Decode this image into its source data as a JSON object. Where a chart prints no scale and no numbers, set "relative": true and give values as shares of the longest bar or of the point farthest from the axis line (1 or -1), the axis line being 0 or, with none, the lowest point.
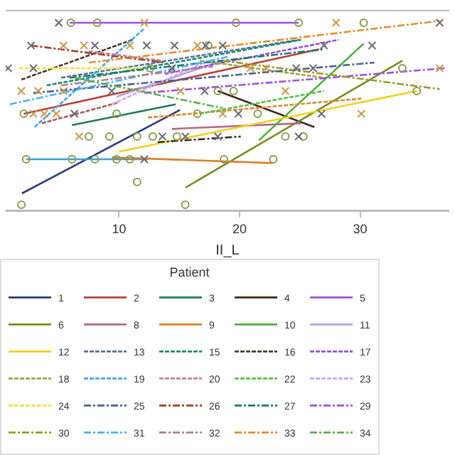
{
  "chart_data": {
    "type": "line",
    "xlabel": "II_L",
    "legend_title": "Patient",
    "relative": true,
    "xlim": [
      0.6,
      37.4
    ],
    "xticks": [
      10,
      20,
      30
    ],
    "grid": false,
    "legend": "bottom",
    "tick_labels": "x",
    "series": [
      {
        "name": "1",
        "color": "#2b3b7a",
        "line_style": "solid",
        "x": [
          1.95,
          15.06
        ],
        "values": [
          0.09,
          0.53
        ]
      },
      {
        "name": "2",
        "color": "#b5443a",
        "line_style": "solid",
        "x": [
          2.1,
          26.6
        ],
        "values": [
          0.51,
          0.85
        ]
      },
      {
        "name": "3",
        "color": "#1f7a5c",
        "line_style": "solid",
        "x": [
          6.1,
          14.7
        ],
        "values": [
          0.45,
          0.56
        ]
      },
      {
        "name": "4",
        "color": "#3d2a1a",
        "line_style": "solid",
        "x": [
          18.2,
          26.2
        ],
        "values": [
          0.63,
          0.44
        ]
      },
      {
        "name": "5",
        "color": "#a050d8",
        "line_style": "solid",
        "x": [
          5.9,
          24.9
        ],
        "values": [
          0.99,
          0.99
        ]
      },
      {
        "name": "6",
        "color": "#7a8a20",
        "line_style": "solid",
        "x": [
          15.5,
          33.5
        ],
        "values": [
          0.12,
          0.79
        ]
      },
      {
        "color": "#3a9ee0",
        "line_style": "solid",
        "x": [
          2.3,
          12.4
        ],
        "values": [
          0.27,
          0.27
        ]
      },
      {
        "name": "8",
        "color": "#b06a8a",
        "line_style": "solid",
        "x": [
          14.4,
          25.1
        ],
        "values": [
          0.43,
          0.46
        ]
      },
      {
        "name": "9",
        "color": "#d9822b",
        "line_style": "solid",
        "x": [
          9.4,
          22.7
        ],
        "values": [
          0.28,
          0.25
        ]
      },
      {
        "name": "10",
        "color": "#4caf3a",
        "line_style": "solid",
        "x": [
          21.6,
          30.3
        ],
        "values": [
          0.37,
          0.88
        ]
      },
      {
        "name": "11",
        "color": "#b8a0e0",
        "line_style": "solid",
        "x": [
          9.8,
          18.6
        ],
        "values": [
          0.6,
          0.79
        ]
      },
      {
        "name": "12",
        "color": "#f0d020",
        "line_style": "solid",
        "x": [
          10.0,
          34.7
        ],
        "values": [
          0.31,
          0.63
        ]
      },
      {
        "name": "13",
        "color": "#5a6f9a",
        "line_style": "dashed",
        "x": [
          5.2,
          24.9
        ],
        "values": [
          0.7,
          0.9
        ]
      },
      {
        "color": "#a85a5a",
        "line_style": "dashed",
        "x": [
          3.6,
          10.0
        ],
        "values": [
          0.46,
          0.57
        ]
      },
      {
        "name": "15",
        "color": "#1f8a70",
        "line_style": "dashed",
        "x": [
          4.0,
          25.1
        ],
        "values": [
          0.66,
          0.9
        ]
      },
      {
        "name": "16",
        "color": "#4a3a2a",
        "line_style": "dashed",
        "x": [
          1.9,
          11.1
        ],
        "values": [
          0.69,
          0.9
        ]
      },
      {
        "name": "17",
        "color": "#9b4ee0",
        "line_style": "dashed",
        "x": [
          13.8,
          28.2
        ],
        "values": [
          0.72,
          0.9
        ]
      },
      {
        "name": "18",
        "color": "#9aaa40",
        "line_style": "dashed",
        "x": [
          16.7,
          27.0
        ],
        "values": [
          0.79,
          0.7
        ]
      },
      {
        "name": "19",
        "color": "#40a8e8",
        "line_style": "dashed",
        "x": [
          3.0,
          12.1
        ],
        "values": [
          0.44,
          0.96
        ]
      },
      {
        "name": "20",
        "color": "#c080a0",
        "line_style": "dashed",
        "x": [
          7.5,
          13.6
        ],
        "values": [
          0.84,
          0.79
        ]
      },
      {
        "color": "#e08a30",
        "line_style": "dashed",
        "x": [
          12.4,
          30.1
        ],
        "values": [
          0.49,
          0.59
        ]
      },
      {
        "name": "22",
        "color": "#5abf4a",
        "line_style": "dashed",
        "x": [
          16.7,
          27.0
        ],
        "values": [
          0.51,
          0.63
        ]
      },
      {
        "name": "23",
        "color": "#c8a8f0",
        "line_style": "dashed",
        "x": [
          9.4,
          17.4
        ],
        "values": [
          0.56,
          0.79
        ]
      },
      {
        "name": "24",
        "color": "#f0e040",
        "line_style": "dashed",
        "x": [
          1.7,
          12.1
        ],
        "values": [
          0.75,
          0.75
        ]
      },
      {
        "name": "25",
        "color": "#506090",
        "line_style": "dashdot",
        "x": [
          2.9,
          31.2
        ],
        "values": [
          0.62,
          0.78
        ]
      },
      {
        "name": "26",
        "color": "#a04030",
        "line_style": "dashdot",
        "x": [
          2.7,
          13.8
        ],
        "values": [
          0.87,
          0.78
        ]
      },
      {
        "name": "27",
        "color": "#1a7a6a",
        "line_style": "dashdot",
        "x": [
          5.9,
          27.0
        ],
        "values": [
          0.7,
          0.85
        ]
      },
      {
        "color": "#303030",
        "line_style": "dashdot",
        "x": [
          13.2,
          20.1
        ],
        "values": [
          0.36,
          0.39
        ]
      },
      {
        "name": "29",
        "color": "#a050e0",
        "line_style": "dashdot",
        "x": [
          12.1,
          37.0
        ],
        "values": [
          0.62,
          0.75
        ]
      },
      {
        "name": "30",
        "color": "#9a9a30",
        "line_style": "dashdot",
        "x": [
          18.6,
          36.6
        ],
        "values": [
          0.79,
          0.64
        ]
      },
      {
        "name": "31",
        "color": "#50b0f0",
        "line_style": "dashdot",
        "x": [
          0.95,
          19.0
        ],
        "values": [
          0.56,
          0.81
        ]
      },
      {
        "name": "32",
        "color": "#b08090",
        "line_style": "dashdot",
        "x": [
          5.2,
          17.8
        ],
        "values": [
          0.66,
          0.76
        ]
      },
      {
        "name": "33",
        "color": "#e09030",
        "line_style": "dashdot",
        "x": [
          7.5,
          36.6
        ],
        "values": [
          0.78,
          1
        ]
      },
      {
        "name": "34",
        "color": "#60b050",
        "line_style": "dashdot",
        "x": [
          6.3,
          18.6
        ],
        "values": [
          0.7,
          0.54
        ]
      },
      {
        "type": "scatter",
        "marker": "circle",
        "color": "#8a9a50",
        "x": [
          6.0,
          8.2,
          19.7,
          24.9,
          30.3,
          33.5,
          34.7,
          1.9,
          15.5,
          11.5,
          2.3,
          6.1,
          8.0,
          9.8,
          10.9,
          18.7,
          22.8,
          7.5,
          9.2,
          11.5,
          12.8,
          14.8,
          23.8,
          25.3,
          2.1,
          9.8,
          16.5,
          21.5,
          18.2,
          19.5,
          12.6,
          17.4
        ],
        "values": [
          0.99,
          0.99,
          0.99,
          0.99,
          0.99,
          0.75,
          0.63,
          0.03,
          0.03,
          0.15,
          0.27,
          0.27,
          0.27,
          0.27,
          0.27,
          0.27,
          0.27,
          0.39,
          0.39,
          0.39,
          0.39,
          0.39,
          0.39,
          0.39,
          0.51,
          0.51,
          0.51,
          0.51,
          0.63,
          0.63,
          0.75,
          0.87
        ]
      },
      {
        "type": "scatter",
        "marker": "cross",
        "color": "#6a6a7a",
        "x": [
          5.0,
          36.6,
          2.7,
          8.0,
          12.3,
          14.6,
          17.2,
          18.6,
          27.0,
          31.0,
          0.8,
          2.9,
          14.4,
          24.7,
          26.1,
          9.4,
          17.1,
          6.3,
          19.9,
          26.8,
          13.6,
          15.5,
          18.2,
          24.9,
          12.1
        ],
        "values": [
          0.99,
          0.99,
          0.87,
          0.87,
          0.87,
          0.87,
          0.87,
          0.87,
          0.87,
          0.87,
          0.75,
          0.75,
          0.75,
          0.75,
          0.75,
          0.63,
          0.63,
          0.51,
          0.51,
          0.51,
          0.39,
          0.39,
          0.39,
          0.39,
          0.27
        ]
      },
      {
        "type": "scatter",
        "marker": "cross",
        "color": "#c89a50",
        "x": [
          12.1,
          28.0,
          5.4,
          7.1,
          10.9,
          16.5,
          20.9,
          22.2,
          36.6,
          1.9,
          3.3,
          5.4,
          15.1,
          23.8,
          2.9,
          3.8,
          4.8,
          18.6,
          30.1,
          6.7
        ],
        "values": [
          0.99,
          0.99,
          0.87,
          0.87,
          0.87,
          0.87,
          0.75,
          0.75,
          0.75,
          0.63,
          0.63,
          0.63,
          0.63,
          0.63,
          0.51,
          0.51,
          0.51,
          0.51,
          0.51,
          0.39
        ]
      }
    ]
  }
}
